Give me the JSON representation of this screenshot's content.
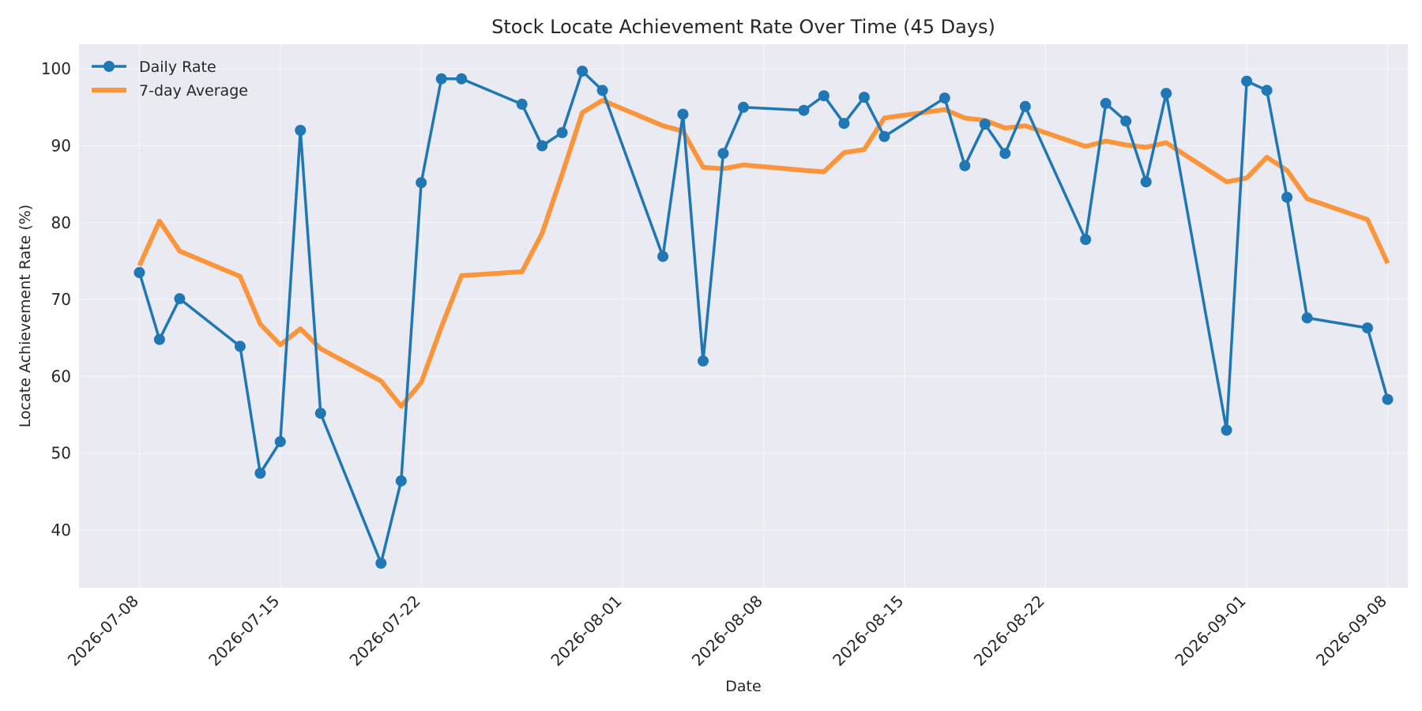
{
  "chart_data": {
    "type": "line",
    "title": "Stock Locate Achievement Rate Over Time (45 Days)",
    "xlabel": "Date",
    "ylabel": "Locate Achievement Rate (%)",
    "x_range": [
      "2026-07-05",
      "2026-09-09"
    ],
    "ylim": [
      32.5,
      103.2
    ],
    "yticks": [
      40,
      50,
      60,
      70,
      80,
      90,
      100
    ],
    "xticks": [
      "2026-07-08",
      "2026-07-15",
      "2026-07-22",
      "2026-08-01",
      "2026-08-08",
      "2026-08-15",
      "2026-08-22",
      "2026-09-01",
      "2026-09-08"
    ],
    "grid": true,
    "legend_position": "top-left",
    "colors": {
      "background": "#eaeaf2",
      "daily": "#1f77b4",
      "average": "#ff7f0e"
    },
    "x": [
      "2026-07-08",
      "2026-07-09",
      "2026-07-10",
      "2026-07-13",
      "2026-07-14",
      "2026-07-15",
      "2026-07-16",
      "2026-07-17",
      "2026-07-20",
      "2026-07-21",
      "2026-07-22",
      "2026-07-23",
      "2026-07-24",
      "2026-07-27",
      "2026-07-28",
      "2026-07-29",
      "2026-07-30",
      "2026-07-31",
      "2026-08-03",
      "2026-08-04",
      "2026-08-05",
      "2026-08-06",
      "2026-08-07",
      "2026-08-10",
      "2026-08-11",
      "2026-08-12",
      "2026-08-13",
      "2026-08-14",
      "2026-08-17",
      "2026-08-18",
      "2026-08-19",
      "2026-08-20",
      "2026-08-21",
      "2026-08-24",
      "2026-08-25",
      "2026-08-26",
      "2026-08-27",
      "2026-08-28",
      "2026-08-31",
      "2026-09-01",
      "2026-09-02",
      "2026-09-03",
      "2026-09-04",
      "2026-09-07",
      "2026-09-08"
    ],
    "series": [
      {
        "name": "Daily Rate",
        "values": [
          73.5,
          64.8,
          70.1,
          63.9,
          47.4,
          51.5,
          92.0,
          55.2,
          35.7,
          46.4,
          85.2,
          98.7,
          98.7,
          95.4,
          90.0,
          91.7,
          99.7,
          97.2,
          75.6,
          94.1,
          62.0,
          89.0,
          95.0,
          94.6,
          96.5,
          92.9,
          96.3,
          91.2,
          96.2,
          87.4,
          92.8,
          89.0,
          95.1,
          77.8,
          95.5,
          93.2,
          85.3,
          96.8,
          53.0,
          98.4,
          97.2,
          83.3,
          67.6,
          66.3,
          57.0
        ]
      },
      {
        "name": "7-day Average",
        "values": [
          74.4,
          80.2,
          76.3,
          73.0,
          66.8,
          64.1,
          66.2,
          63.6,
          59.4,
          56.1,
          59.2,
          66.4,
          73.1,
          73.6,
          78.6,
          86.3,
          94.3,
          95.9,
          92.6,
          91.9,
          87.2,
          87.0,
          87.5,
          86.8,
          86.6,
          89.1,
          89.5,
          93.6,
          94.7,
          93.6,
          93.3,
          92.3,
          92.6,
          89.9,
          90.6,
          90.1,
          89.8,
          90.4,
          85.3,
          85.8,
          88.5,
          86.8,
          83.1,
          80.4,
          74.7
        ]
      }
    ]
  }
}
